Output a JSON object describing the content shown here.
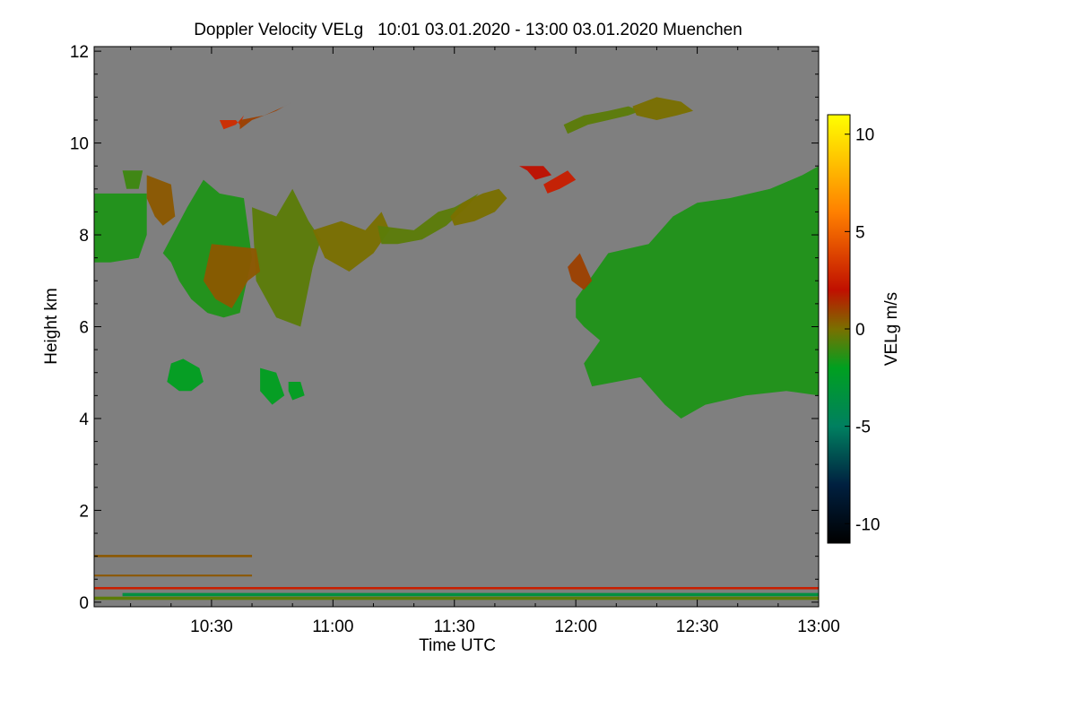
{
  "chart_data": {
    "type": "heatmap",
    "title": "Doppler Velocity VELg   10:01 03.01.2020 - 13:00 03.01.2020 Muenchen",
    "xlabel": "Time UTC",
    "ylabel": "Height km",
    "x_unit": "minutes of day (UTC)",
    "xlim": [
      601,
      780
    ],
    "ylim": [
      -0.1,
      12.1
    ],
    "x_ticks": [
      {
        "value": 630,
        "label": "10:30"
      },
      {
        "value": 660,
        "label": "11:00"
      },
      {
        "value": 690,
        "label": "11:30"
      },
      {
        "value": 720,
        "label": "12:00"
      },
      {
        "value": 750,
        "label": "12:30"
      },
      {
        "value": 780,
        "label": "13:00"
      }
    ],
    "y_ticks": [
      {
        "value": 0,
        "label": "0"
      },
      {
        "value": 2,
        "label": "2"
      },
      {
        "value": 4,
        "label": "4"
      },
      {
        "value": 6,
        "label": "6"
      },
      {
        "value": 8,
        "label": "8"
      },
      {
        "value": 10,
        "label": "10"
      },
      {
        "value": 12,
        "label": "12"
      }
    ],
    "background_color": "#7f7f7f",
    "colorbar": {
      "label": "VELg m/s",
      "range": [
        -11,
        11
      ],
      "ticks": [
        {
          "value": 10,
          "label": "10"
        },
        {
          "value": 5,
          "label": "5"
        },
        {
          "value": 0,
          "label": "0"
        },
        {
          "value": -5,
          "label": "-5"
        },
        {
          "value": -10,
          "label": "-10"
        }
      ],
      "colorscale": [
        {
          "value": -11,
          "color": "#000000"
        },
        {
          "value": -8,
          "color": "#002040"
        },
        {
          "value": -5,
          "color": "#008060"
        },
        {
          "value": -2,
          "color": "#00a020"
        },
        {
          "value": 0,
          "color": "#7a7000"
        },
        {
          "value": 2,
          "color": "#c01000"
        },
        {
          "value": 6,
          "color": "#ff8000"
        },
        {
          "value": 11,
          "color": "#ffff00"
        }
      ]
    },
    "regions": [
      {
        "x": [
          601,
          614,
          614,
          612,
          605,
          601
        ],
        "y": [
          8.9,
          8.9,
          8.0,
          7.5,
          7.4,
          7.4
        ],
        "velocity": -1.5
      },
      {
        "x": [
          608,
          613,
          612,
          609
        ],
        "y": [
          9.4,
          9.4,
          9.0,
          9.0
        ],
        "velocity": -1.0
      },
      {
        "x": [
          614,
          620,
          621,
          618,
          616,
          614
        ],
        "y": [
          9.3,
          9.1,
          8.4,
          8.2,
          8.4,
          8.8
        ],
        "velocity": 0.5
      },
      {
        "x": [
          618,
          624,
          628,
          632,
          638,
          640,
          637,
          633,
          629,
          625,
          622,
          620
        ],
        "y": [
          7.6,
          8.6,
          9.2,
          8.9,
          8.8,
          7.5,
          6.3,
          6.2,
          6.3,
          6.6,
          7.0,
          7.4
        ],
        "velocity": -1.5
      },
      {
        "x": [
          640,
          646,
          650,
          654,
          657,
          655,
          652,
          646,
          641
        ],
        "y": [
          8.6,
          8.4,
          9.0,
          8.3,
          7.9,
          7.3,
          6.0,
          6.2,
          7.0
        ],
        "velocity": -0.5
      },
      {
        "x": [
          655,
          662,
          668,
          672,
          674,
          670,
          664,
          658
        ],
        "y": [
          8.1,
          8.3,
          8.1,
          8.5,
          8.1,
          7.6,
          7.2,
          7.5
        ],
        "velocity": 0.0
      },
      {
        "x": [
          671,
          680,
          686,
          690,
          694,
          696,
          693,
          688,
          682,
          676,
          672
        ],
        "y": [
          8.2,
          8.1,
          8.5,
          8.6,
          8.8,
          8.9,
          8.6,
          8.2,
          7.9,
          7.8,
          7.8
        ],
        "velocity": -0.5
      },
      {
        "x": [
          689,
          692,
          697,
          701,
          703,
          700,
          695,
          690
        ],
        "y": [
          8.4,
          8.7,
          8.9,
          9.0,
          8.8,
          8.5,
          8.3,
          8.2
        ],
        "velocity": 0.0
      },
      {
        "x": [
          632,
          636,
          637,
          638,
          636,
          633
        ],
        "y": [
          10.5,
          10.5,
          10.4,
          10.6,
          10.4,
          10.3
        ],
        "velocity": 3.0
      },
      {
        "x": [
          637,
          643,
          648,
          650,
          646,
          640,
          637
        ],
        "y": [
          10.5,
          10.6,
          10.8,
          10.9,
          10.7,
          10.5,
          10.3
        ],
        "velocity": 1.0
      },
      {
        "x": [
          706,
          712,
          714,
          710,
          708
        ],
        "y": [
          9.5,
          9.5,
          9.3,
          9.2,
          9.4
        ],
        "velocity": 2.0
      },
      {
        "x": [
          712,
          718,
          720,
          716,
          713
        ],
        "y": [
          9.1,
          9.4,
          9.2,
          9.0,
          8.9
        ],
        "velocity": 2.5
      },
      {
        "x": [
          717,
          722,
          728,
          733,
          736,
          733,
          728,
          723,
          718
        ],
        "y": [
          10.4,
          10.6,
          10.7,
          10.8,
          10.7,
          10.6,
          10.5,
          10.4,
          10.2
        ],
        "velocity": -0.5
      },
      {
        "x": [
          734,
          740,
          746,
          749,
          745,
          740,
          735
        ],
        "y": [
          10.8,
          11.0,
          10.9,
          10.7,
          10.6,
          10.5,
          10.6
        ],
        "velocity": 0.0
      },
      {
        "x": [
          720,
          728,
          738,
          744,
          750,
          758,
          768,
          776,
          780,
          780,
          772,
          762,
          752,
          746,
          742,
          736,
          730,
          724,
          722,
          726,
          722,
          720
        ],
        "y": [
          6.6,
          7.6,
          7.8,
          8.4,
          8.7,
          8.8,
          9.0,
          9.3,
          9.5,
          4.5,
          4.6,
          4.5,
          4.3,
          4.0,
          4.3,
          4.9,
          4.8,
          4.7,
          5.2,
          5.7,
          6.0,
          6.2
        ],
        "velocity": -1.5
      },
      {
        "x": [
          718,
          721,
          724,
          722,
          719
        ],
        "y": [
          7.3,
          7.6,
          7.0,
          6.8,
          7.0
        ],
        "velocity": 1.0
      },
      {
        "x": [
          630,
          641,
          642,
          639,
          635,
          631,
          628
        ],
        "y": [
          7.8,
          7.7,
          7.2,
          7.0,
          6.4,
          6.6,
          7.0
        ],
        "velocity": 0.5
      },
      {
        "x": [
          620,
          623,
          627,
          628,
          625,
          622,
          619
        ],
        "y": [
          5.2,
          5.3,
          5.1,
          4.8,
          4.6,
          4.6,
          4.8
        ],
        "velocity": -2.0
      },
      {
        "x": [
          642,
          646,
          648,
          645,
          642
        ],
        "y": [
          5.1,
          5.0,
          4.5,
          4.3,
          4.6
        ],
        "velocity": -2.0
      },
      {
        "x": [
          649,
          652,
          653,
          650,
          649
        ],
        "y": [
          4.8,
          4.8,
          4.5,
          4.4,
          4.6
        ],
        "velocity": -2.0
      }
    ],
    "layers": [
      {
        "x0": 601,
        "x1": 780,
        "y0": 0.28,
        "y1": 0.33,
        "velocity": 2.5
      },
      {
        "x0": 601,
        "x1": 780,
        "y0": 0.05,
        "y1": 0.12,
        "velocity": -0.5
      },
      {
        "x0": 608,
        "x1": 780,
        "y0": 0.13,
        "y1": 0.2,
        "velocity": -3.5
      },
      {
        "x0": 601,
        "x1": 640,
        "y0": 0.98,
        "y1": 1.03,
        "velocity": 0.5
      },
      {
        "x0": 601,
        "x1": 640,
        "y0": 0.56,
        "y1": 0.6,
        "velocity": 0.5
      }
    ]
  }
}
